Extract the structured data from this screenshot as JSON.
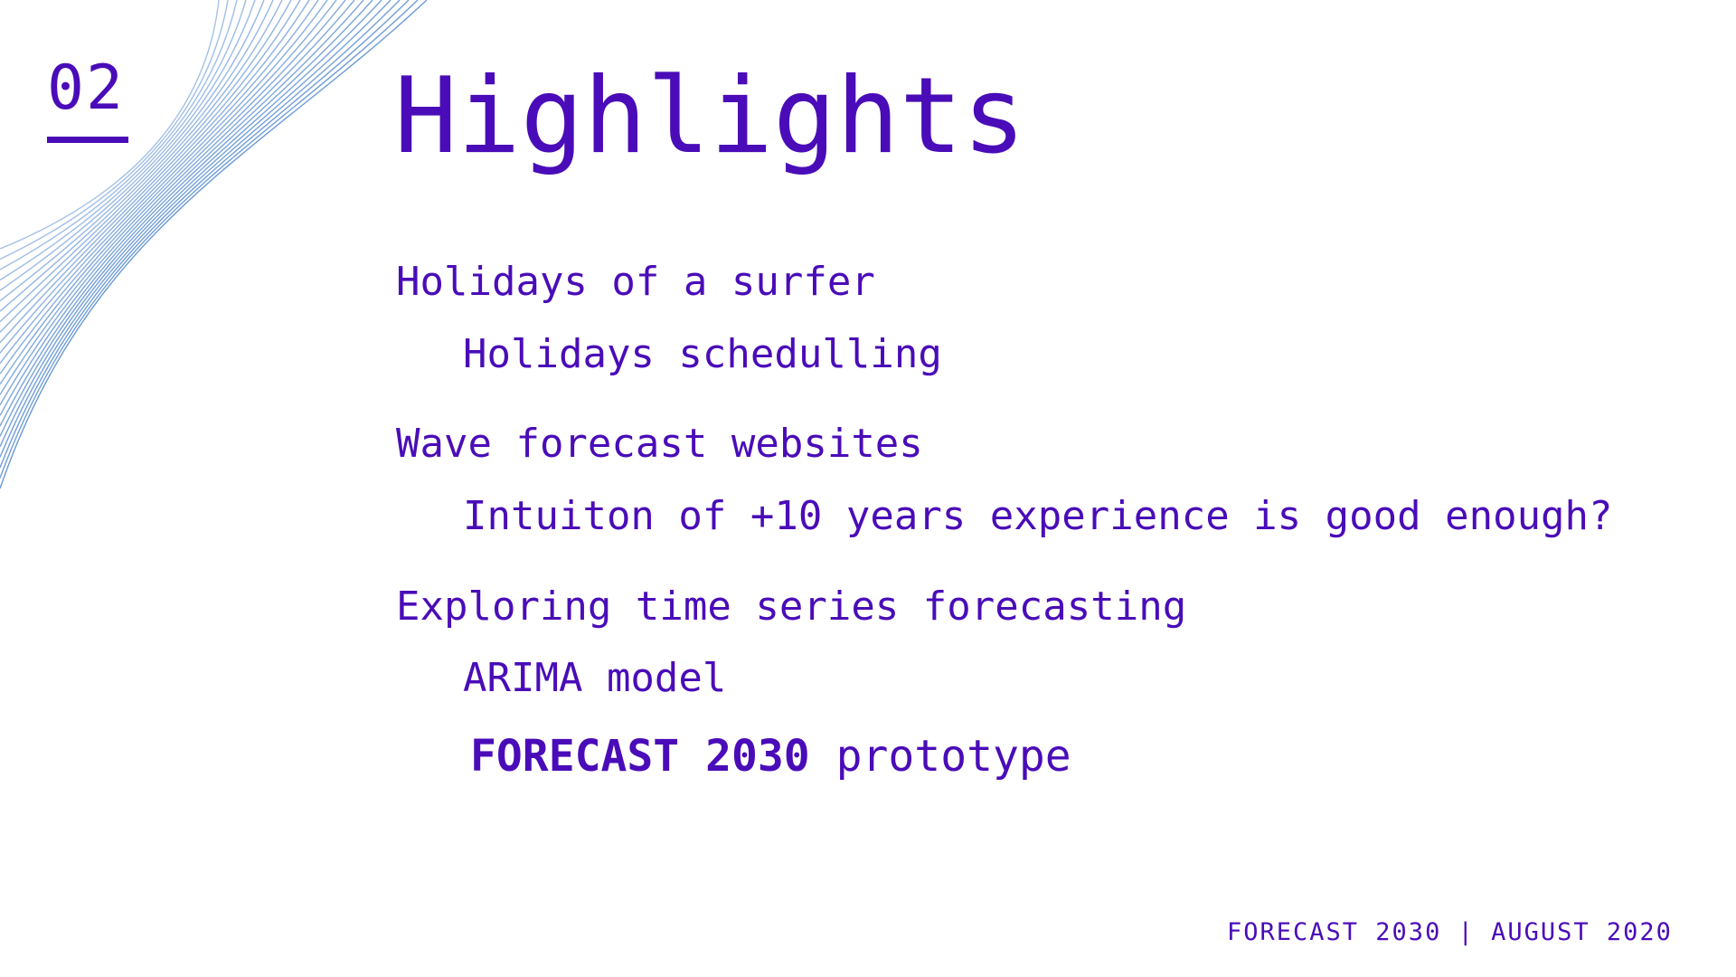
{
  "slide": {
    "number": "02",
    "title": "Highlights",
    "bullets": [
      {
        "level": 1,
        "text": "Holidays of a surfer"
      },
      {
        "level": 2,
        "text": "Holidays schedulling"
      },
      {
        "level": 1,
        "text": "Wave forecast websites"
      },
      {
        "level": 2,
        "text": "Intuiton of +10 years experience is good enough?"
      },
      {
        "level": 1,
        "text": "Exploring time series forecasting"
      },
      {
        "level": 2,
        "text": "ARIMA model"
      }
    ],
    "feature_line": {
      "bold": "FORECAST 2030",
      "rest": "prototype"
    },
    "footer": "FORECAST 2030 | AUGUST 2020"
  },
  "colors": {
    "text": "#4a0cb8",
    "wave_lines": "#5b8fd4",
    "background": "#ffffff"
  }
}
